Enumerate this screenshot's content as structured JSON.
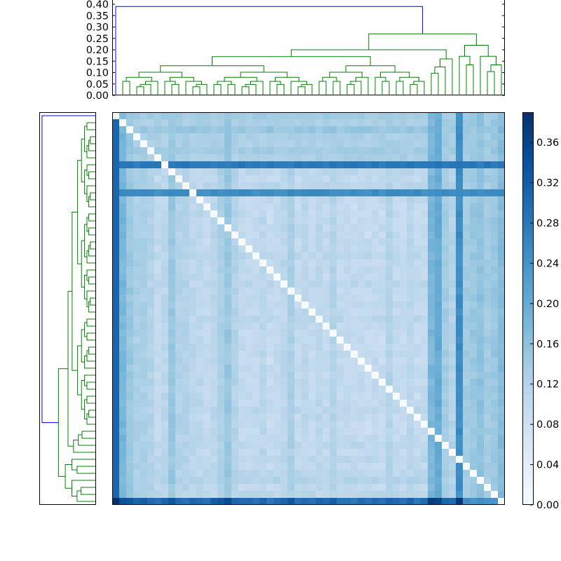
{
  "chart_data": {
    "type": "heatmap",
    "title": "",
    "description_type": "clustered distance heatmap with dendrograms",
    "n": 56,
    "colormap": "Blues",
    "color_range": [
      0.0,
      0.39
    ],
    "colorbar": {
      "ticks": [
        0.0,
        0.04,
        0.08,
        0.12,
        0.16,
        0.2,
        0.24,
        0.28,
        0.32,
        0.36
      ],
      "tick_labels": [
        "0.00",
        "0.04",
        "0.08",
        "0.12",
        "0.16",
        "0.20",
        "0.24",
        "0.28",
        "0.32",
        "0.36"
      ]
    },
    "top_dendrogram": {
      "ylim": [
        0.0,
        0.4
      ],
      "ticks": [
        0.0,
        0.05,
        0.1,
        0.15,
        0.2,
        0.25,
        0.3,
        0.35,
        0.4
      ],
      "tick_labels": [
        "0.00",
        "0.05",
        "0.10",
        "0.15",
        "0.20",
        "0.25",
        "0.30",
        "0.35",
        "0.40"
      ],
      "root_height": 0.39,
      "colors": {
        "main": "#008000",
        "root": "#0000ff"
      }
    },
    "left_dendrogram": {
      "root_height": 0.39,
      "colors": {
        "main": "#008000",
        "root": "#0000ff"
      }
    },
    "column_profile": [
      0.31,
      0.2,
      0.17,
      0.15,
      0.15,
      0.14,
      0.12,
      0.13,
      0.17,
      0.14,
      0.14,
      0.13,
      0.13,
      0.12,
      0.13,
      0.15,
      0.17,
      0.14,
      0.12,
      0.12,
      0.12,
      0.13,
      0.11,
      0.12,
      0.13,
      0.15,
      0.12,
      0.13,
      0.12,
      0.13,
      0.12,
      0.14,
      0.12,
      0.12,
      0.11,
      0.12,
      0.11,
      0.12,
      0.11,
      0.14,
      0.12,
      0.11,
      0.13,
      0.11,
      0.12,
      0.2,
      0.22,
      0.16,
      0.14,
      0.27,
      0.16,
      0.17,
      0.18,
      0.16,
      0.17,
      0.19
    ],
    "row_profile": [
      0.16,
      0.15,
      0.17,
      0.15,
      0.15,
      0.16,
      0.15,
      0.3,
      0.13,
      0.12,
      0.13,
      0.27,
      0.12,
      0.11,
      0.11,
      0.11,
      0.12,
      0.11,
      0.12,
      0.12,
      0.13,
      0.12,
      0.12,
      0.12,
      0.13,
      0.12,
      0.12,
      0.12,
      0.12,
      0.13,
      0.12,
      0.12,
      0.11,
      0.12,
      0.12,
      0.11,
      0.12,
      0.12,
      0.11,
      0.12,
      0.11,
      0.12,
      0.13,
      0.12,
      0.11,
      0.11,
      0.12,
      0.13,
      0.12,
      0.13,
      0.12,
      0.13,
      0.14,
      0.12,
      0.13,
      0.39
    ],
    "special_row_index": 55,
    "special_row_values": [
      0.39,
      0.34,
      0.33,
      0.31,
      0.32,
      0.3,
      0.29,
      0.31,
      0.33,
      0.3,
      0.29,
      0.31,
      0.3,
      0.29,
      0.32,
      0.33,
      0.35,
      0.31,
      0.3,
      0.3,
      0.29,
      0.31,
      0.28,
      0.3,
      0.31,
      0.33,
      0.29,
      0.3,
      0.29,
      0.31,
      0.3,
      0.32,
      0.29,
      0.29,
      0.28,
      0.3,
      0.29,
      0.3,
      0.29,
      0.31,
      0.3,
      0.29,
      0.31,
      0.28,
      0.3,
      0.37,
      0.36,
      0.31,
      0.3,
      0.38,
      0.25,
      0.24,
      0.25,
      0.24,
      0.24,
      0.23
    ]
  }
}
